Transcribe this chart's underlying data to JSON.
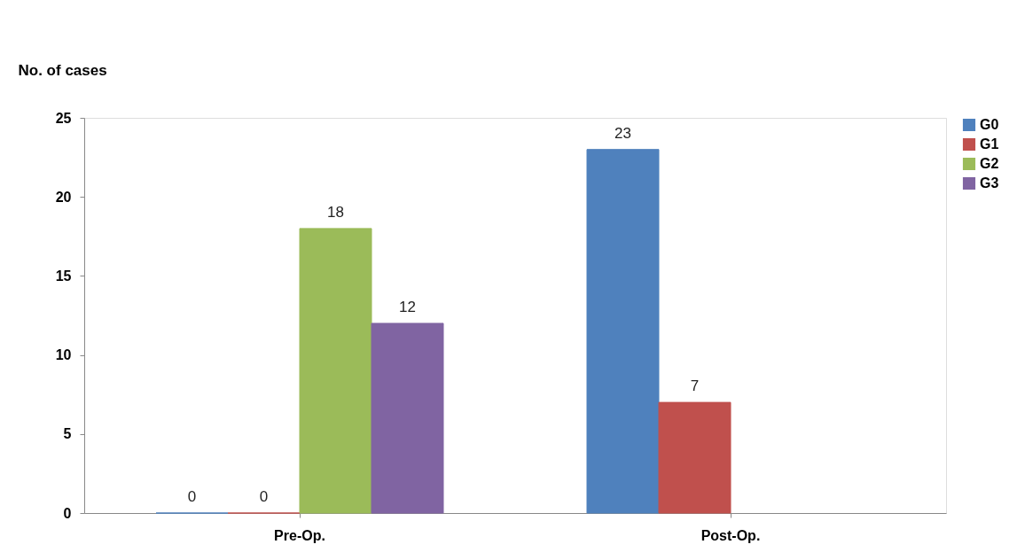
{
  "chart_data": {
    "type": "bar",
    "ylabel": "No. of cases",
    "categories": [
      "Pre-Op.",
      "Post-Op."
    ],
    "series": [
      {
        "name": "G0",
        "color": "#4f81bd",
        "values": [
          0,
          23
        ]
      },
      {
        "name": "G1",
        "color": "#c0504d",
        "values": [
          0,
          7
        ]
      },
      {
        "name": "G2",
        "color": "#9bbb59",
        "values": [
          18,
          null
        ]
      },
      {
        "name": "G3",
        "color": "#8064a2",
        "values": [
          12,
          null
        ]
      }
    ],
    "ylim": [
      0,
      25
    ],
    "yticks": [
      0,
      5,
      10,
      15,
      20,
      25
    ],
    "grid": false,
    "legend": "right",
    "data_labels": true
  }
}
